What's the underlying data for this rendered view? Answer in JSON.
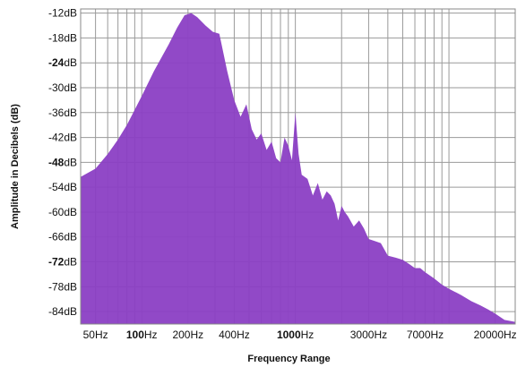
{
  "chart_data": {
    "type": "area",
    "title": "",
    "xlabel": "Frequency Range",
    "ylabel": "Amplitude in Decibels (dB)",
    "x_scale": "log",
    "x_unit": "Hz",
    "xlim": [
      40,
      27000
    ],
    "ylim": [
      -87,
      -11
    ],
    "grid": true,
    "fill_color": "#8b3fc4",
    "y_ticks": [
      {
        "value": -12,
        "num": "-12",
        "unit": "dB",
        "bold": false
      },
      {
        "value": -18,
        "num": "-18",
        "unit": "dB",
        "bold": false
      },
      {
        "value": -24,
        "num": "-24",
        "unit": "dB",
        "bold": true
      },
      {
        "value": -30,
        "num": "-30",
        "unit": "dB",
        "bold": false
      },
      {
        "value": -36,
        "num": "-36",
        "unit": "dB",
        "bold": false
      },
      {
        "value": -42,
        "num": "-42",
        "unit": "dB",
        "bold": false
      },
      {
        "value": -48,
        "num": "-48",
        "unit": "dB",
        "bold": true
      },
      {
        "value": -54,
        "num": "-54",
        "unit": "dB",
        "bold": false
      },
      {
        "value": -60,
        "num": "-60",
        "unit": "dB",
        "bold": false
      },
      {
        "value": -66,
        "num": "-66",
        "unit": "dB",
        "bold": false
      },
      {
        "value": -72,
        "num": "-72",
        "unit": "dB",
        "bold": true
      },
      {
        "value": -78,
        "num": "-78",
        "unit": "dB",
        "bold": false
      },
      {
        "value": -84,
        "num": "-84",
        "unit": "dB",
        "bold": false
      }
    ],
    "x_ticks": [
      {
        "value": 50,
        "num": "50",
        "unit": "Hz",
        "bold": false
      },
      {
        "value": 100,
        "num": "100",
        "unit": "Hz",
        "bold": true
      },
      {
        "value": 200,
        "num": "200",
        "unit": "Hz",
        "bold": false
      },
      {
        "value": 400,
        "num": "400",
        "unit": "Hz",
        "bold": false
      },
      {
        "value": 1000,
        "num": "1000",
        "unit": "Hz",
        "bold": true
      },
      {
        "value": 3000,
        "num": "3000",
        "unit": "Hz",
        "bold": false
      },
      {
        "value": 7000,
        "num": "7000",
        "unit": "Hz",
        "bold": false
      },
      {
        "value": 20000,
        "num": "20000",
        "unit": "Hz",
        "bold": false
      }
    ],
    "x_grid": [
      50,
      60,
      70,
      80,
      90,
      100,
      200,
      300,
      400,
      500,
      600,
      700,
      800,
      900,
      1000,
      2000,
      3000,
      4000,
      5000,
      6000,
      7000,
      8000,
      9000,
      10000,
      20000
    ],
    "series": [
      {
        "x": [
          40,
          50,
          60,
          70,
          80,
          100,
          120,
          150,
          170,
          190,
          210,
          230,
          260,
          290,
          320,
          360,
          400,
          440,
          480,
          520,
          560,
          600,
          650,
          700,
          750,
          800,
          850,
          900,
          950,
          1000,
          1050,
          1100,
          1200,
          1300,
          1400,
          1500,
          1600,
          1700,
          1800,
          1900,
          2000,
          2100,
          2200,
          2400,
          2600,
          2800,
          3000,
          3300,
          3600,
          4000,
          4500,
          5000,
          5500,
          6000,
          6500,
          7000,
          8000,
          9000,
          10000,
          12000,
          14000,
          16000,
          18000,
          20000,
          23000,
          27000
        ],
        "y": [
          -51.5,
          -49.5,
          -46,
          -42.5,
          -39,
          -32,
          -26,
          -19.5,
          -15.5,
          -12.5,
          -12,
          -13,
          -15,
          -16.5,
          -17,
          -26,
          -33,
          -37,
          -34,
          -40,
          -42.5,
          -41,
          -45,
          -43,
          -47,
          -48,
          -42,
          -44,
          -47.5,
          -36,
          -46,
          -51,
          -52,
          -56,
          -53,
          -57,
          -55,
          -56,
          -58,
          -62,
          -58.5,
          -60,
          -61,
          -63.5,
          -62,
          -64,
          -66.5,
          -67,
          -67.5,
          -70.5,
          -71,
          -71.5,
          -72.5,
          -73.5,
          -73.5,
          -74.5,
          -76,
          -77.5,
          -78.5,
          -80,
          -81.5,
          -82.5,
          -83.5,
          -84.5,
          -86,
          -86.5
        ]
      }
    ]
  }
}
